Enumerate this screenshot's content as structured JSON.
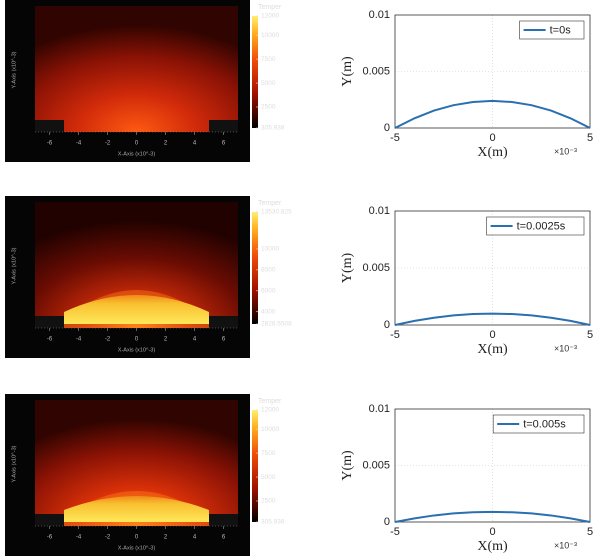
{
  "chart_data": [
    {
      "type": "heatmap",
      "x_label": "X-Axis (x10^-3)",
      "y_label": "Y-Axis (x10^-3)",
      "colorbar_title": "Temper",
      "clim": [
        305.938,
        12000
      ],
      "cticks": [
        305.938,
        2500,
        5000,
        7500,
        10000,
        12000
      ],
      "xlim": [
        -7,
        7
      ],
      "xticks": [
        -6,
        -4,
        -2,
        0,
        2,
        4,
        6
      ]
    },
    {
      "type": "line",
      "x_label": "X(m)",
      "y_label": "Y(m)",
      "x_multiplier": "×10⁻³",
      "x": [
        -5,
        -4,
        -3,
        -2,
        -1,
        0,
        1,
        2,
        3,
        4,
        5
      ],
      "series": [
        {
          "name": "t=0s",
          "color": "#2a6fb0",
          "values": [
            0,
            0.00086,
            0.00154,
            0.00202,
            0.0023,
            0.0024,
            0.0023,
            0.00202,
            0.00154,
            0.00086,
            0
          ]
        }
      ],
      "xlim": [
        -5,
        5
      ],
      "ylim": [
        0,
        0.01
      ],
      "xticks": [
        -5,
        0,
        5
      ],
      "yticks": [
        0,
        0.005,
        0.01
      ],
      "grid": true,
      "legend": "upper right"
    },
    {
      "type": "heatmap",
      "x_label": "X-Axis (x10^-3)",
      "y_label": "Y-Axis (x10^-3)",
      "colorbar_title": "Temper",
      "clim": [
        2828.5508,
        13530.825
      ],
      "cticks": [
        2828.5508,
        4000,
        6000,
        8000,
        10000,
        13530.825
      ],
      "xlim": [
        -7,
        7
      ],
      "xticks": [
        -6,
        -4,
        -2,
        0,
        2,
        4,
        6
      ]
    },
    {
      "type": "line",
      "x_label": "X(m)",
      "y_label": "Y(m)",
      "x_multiplier": "×10⁻³",
      "x": [
        -5,
        -4,
        -3,
        -2,
        -1,
        0,
        1,
        2,
        3,
        4,
        5
      ],
      "series": [
        {
          "name": "t=0.0025s",
          "color": "#2a6fb0",
          "values": [
            0,
            0.00036,
            0.00064,
            0.00084,
            0.00096,
            0.001,
            0.00096,
            0.00084,
            0.00064,
            0.00036,
            0
          ]
        }
      ],
      "xlim": [
        -5,
        5
      ],
      "ylim": [
        0,
        0.01
      ],
      "xticks": [
        -5,
        0,
        5
      ],
      "yticks": [
        0,
        0.005,
        0.01
      ],
      "grid": true,
      "legend": "upper right"
    },
    {
      "type": "heatmap",
      "x_label": "X-Axis (x10^-3)",
      "y_label": "Y-Axis (x10^-3)",
      "colorbar_title": "Temper",
      "clim": [
        305.938,
        12000
      ],
      "cticks": [
        305.938,
        2500,
        5000,
        7500,
        10000,
        12000
      ],
      "xlim": [
        -7,
        7
      ],
      "xticks": [
        -6,
        -4,
        -2,
        0,
        2,
        4,
        6
      ]
    },
    {
      "type": "line",
      "x_label": "X(m)",
      "y_label": "Y(m)",
      "x_multiplier": "×10⁻³",
      "x": [
        -5,
        -4,
        -3,
        -2,
        -1,
        0,
        1,
        2,
        3,
        4,
        5
      ],
      "series": [
        {
          "name": "t=0.005s",
          "color": "#2a6fb0",
          "values": [
            0,
            0.00032,
            0.00058,
            0.00076,
            0.00086,
            0.0009,
            0.00086,
            0.00076,
            0.00058,
            0.00032,
            0
          ]
        }
      ],
      "xlim": [
        -5,
        5
      ],
      "ylim": [
        0,
        0.01
      ],
      "xticks": [
        -5,
        0,
        5
      ],
      "yticks": [
        0,
        0.005,
        0.01
      ],
      "grid": true,
      "legend": "upper right"
    }
  ]
}
